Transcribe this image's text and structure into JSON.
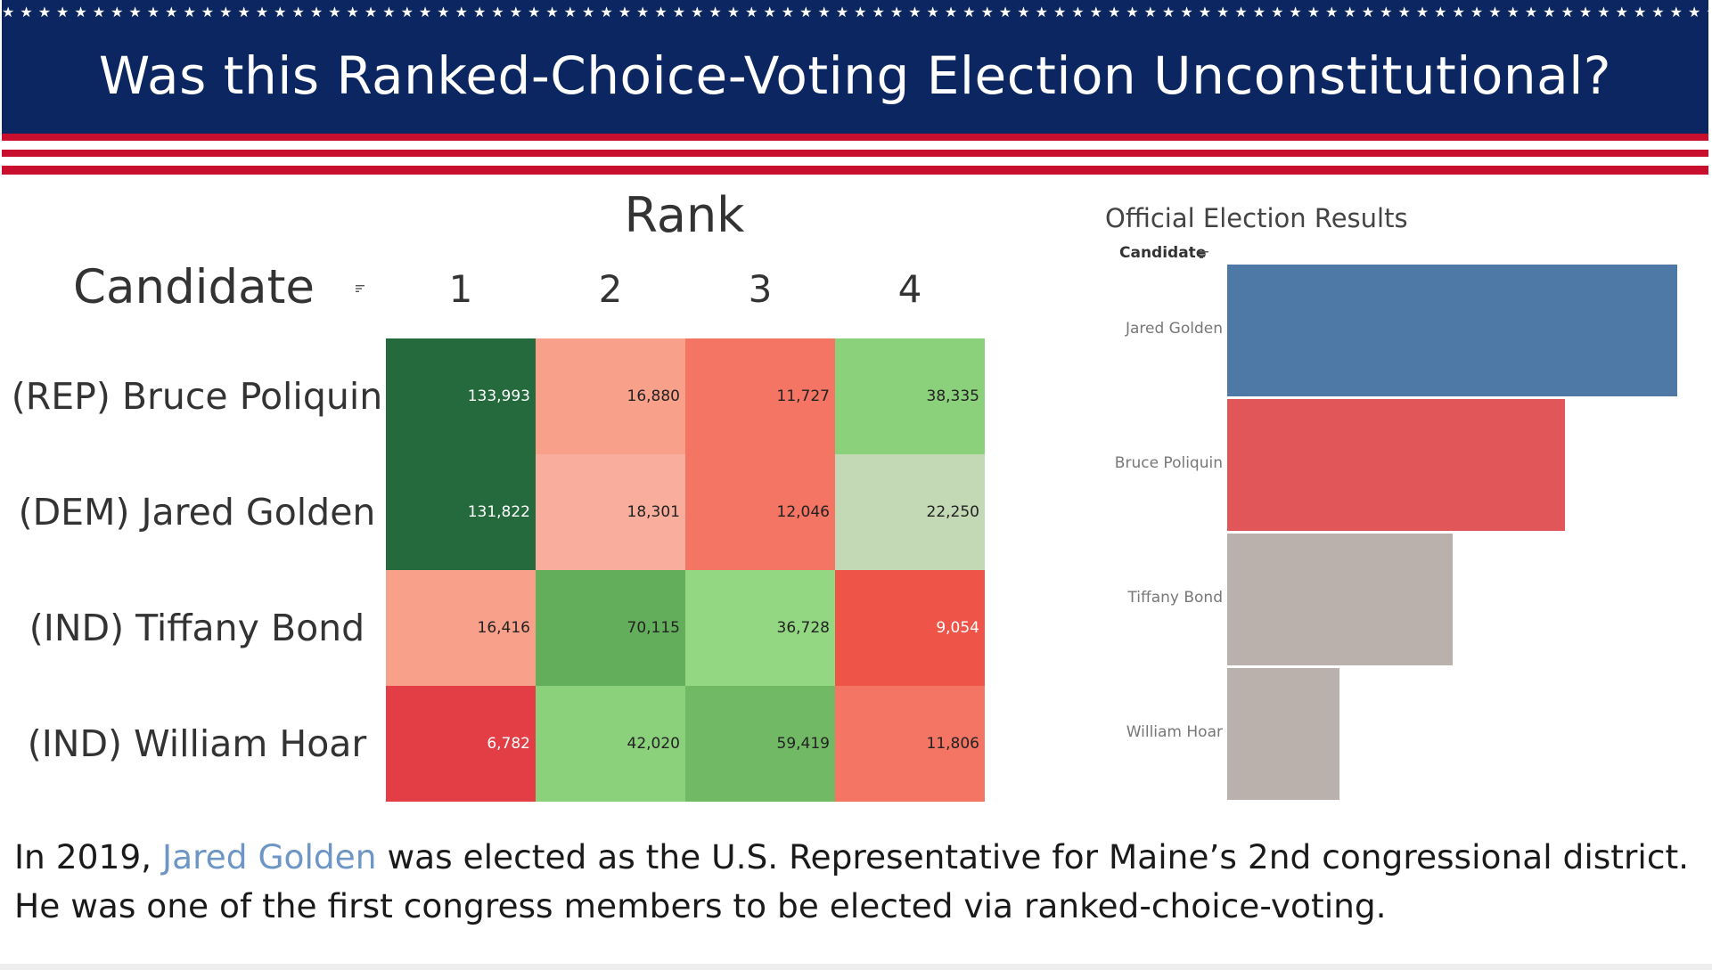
{
  "banner": {
    "title": "Was this Ranked-Choice-Voting Election Unconstitutional?",
    "stars": "★★★★★★★★★★★★★★★★★★★★★★★★★★★★★★★★★★★★★★★★★★★★★★★★★★★★★★★★★★★★★★★★★★★★★★★★★★★★★★★★★★★★★★★★★★★★★★★★★",
    "navy": "#0b2660",
    "red": "#c8102e"
  },
  "chart_data": [
    {
      "type": "heatmap",
      "title": "Rank",
      "row_header": "Candidate",
      "sort_icon": "sort-icon",
      "columns": [
        "1",
        "2",
        "3",
        "4"
      ],
      "rows": [
        "(REP) Bruce Poliquin",
        "(DEM) Jared Golden",
        "(IND) Tiffany Bond",
        "(IND) William Hoar"
      ],
      "values": [
        [
          "133,993",
          "16,880",
          "11,727",
          "38,335"
        ],
        [
          "131,822",
          "18,301",
          "12,046",
          "22,250"
        ],
        [
          "16,416",
          "70,115",
          "36,728",
          "9,054"
        ],
        [
          "6,782",
          "42,020",
          "59,419",
          "11,806"
        ]
      ],
      "colors": [
        [
          "#246a3c",
          "#f9a08a",
          "#f47563",
          "#8bd07a"
        ],
        [
          "#246a3c",
          "#f9ad9c",
          "#f47563",
          "#c3d8b5"
        ],
        [
          "#f9a08a",
          "#63ae5b",
          "#93d782",
          "#ee5548"
        ],
        [
          "#e33e45",
          "#8bd07a",
          "#72b966",
          "#f47563"
        ]
      ]
    },
    {
      "type": "bar",
      "title": "Official Election Results",
      "orientation": "horizontal",
      "axis_label": "Candidate",
      "sort_icon": "sort-icon",
      "categories": [
        "Jared Golden",
        "Bruce Poliquin",
        "Tiffany Bond",
        "William Hoar"
      ],
      "relative_values": [
        1.0,
        0.75,
        0.5,
        0.25
      ],
      "colors": [
        "#4e79a7",
        "#e15759",
        "#bab0ac",
        "#bab0ac"
      ]
    }
  ],
  "caption": {
    "line1_prefix": "In 2019, ",
    "line1_highlight": "Jared Golden",
    "line1_suffix": " was elected as the U.S. Representative for Maine’s 2nd congressional district.",
    "line2": "He was one of the first congress members to be elected via ranked-choice-voting.",
    "highlight_color": "#6d96c6"
  }
}
